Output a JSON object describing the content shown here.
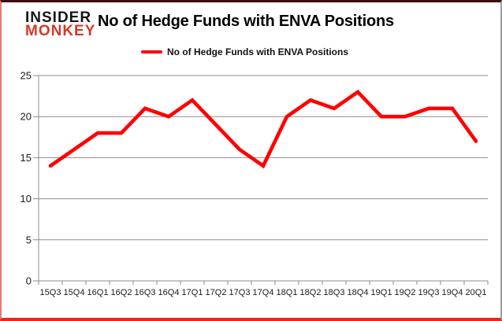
{
  "branding": {
    "line1": "INSIDER",
    "line2": "MONKEY",
    "line1_color": "#151515",
    "line2_color": "#d13b27"
  },
  "header": {
    "title": "No of Hedge Funds with ENVA Positions"
  },
  "legend": {
    "label": "No of Hedge Funds with ENVA Positions",
    "line_color": "#ff0000"
  },
  "chart_data": {
    "type": "line",
    "title": "No of Hedge Funds with ENVA Positions",
    "series": [
      {
        "name": "No of Hedge Funds with ENVA Positions",
        "values": [
          14,
          16,
          18,
          18,
          21,
          20,
          22,
          19,
          16,
          14,
          20,
          22,
          21,
          23,
          20,
          20,
          21,
          21,
          17
        ]
      }
    ],
    "categories": [
      "15Q3",
      "15Q4",
      "16Q1",
      "16Q2",
      "16Q3",
      "16Q4",
      "17Q1",
      "17Q2",
      "17Q3",
      "17Q4",
      "18Q1",
      "18Q2",
      "18Q3",
      "18Q4",
      "19Q1",
      "19Q2",
      "19Q3",
      "19Q4",
      "20Q1"
    ],
    "xlabel": "",
    "ylabel": "",
    "ylim": [
      0,
      25
    ],
    "yticks": [
      0,
      5,
      10,
      15,
      20,
      25
    ],
    "grid": true,
    "legend_position": "top-center",
    "line_color": "#ff0000",
    "grid_color": "#8c8c8c",
    "tick_label_color": "#1a1a1a"
  },
  "frame_colors": {
    "top": "#420c0c",
    "left": "#e87a72",
    "right": "#9c9c9c",
    "bottom": "#ee2222"
  }
}
